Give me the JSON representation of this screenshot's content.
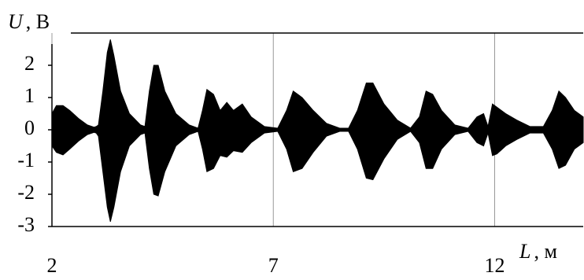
{
  "chart_data": {
    "type": "envelope",
    "ylabel_symbol": "U",
    "ylabel_unit": ", В",
    "xlabel_symbol": "L",
    "xlabel_unit": ", м",
    "x": [
      2.0,
      2.1,
      2.25,
      2.4,
      2.6,
      2.8,
      2.95,
      3.0,
      3.05,
      3.15,
      3.25,
      3.32,
      3.4,
      3.55,
      3.75,
      4.0,
      4.1,
      4.2,
      4.3,
      4.4,
      4.55,
      4.8,
      5.1,
      5.3,
      5.4,
      5.5,
      5.65,
      5.8,
      5.95,
      6.1,
      6.3,
      6.5,
      6.8,
      7.1,
      7.3,
      7.45,
      7.65,
      7.9,
      8.2,
      8.5,
      8.7,
      8.9,
      9.1,
      9.25,
      9.5,
      9.8,
      10.1,
      10.3,
      10.45,
      10.6,
      10.8,
      11.1,
      11.4,
      11.6,
      11.75,
      11.85,
      11.95,
      12.05,
      12.25,
      12.5,
      12.8,
      13.1,
      13.3,
      13.45,
      13.6,
      13.8,
      14.0
    ],
    "series": [
      {
        "color": "#000000",
        "values": [
          0.5,
          0.75,
          0.75,
          0.6,
          0.35,
          0.15,
          0.08,
          0.1,
          0.15,
          1.2,
          2.4,
          2.8,
          2.3,
          1.2,
          0.5,
          0.15,
          0.1,
          1.2,
          2.0,
          2.0,
          1.2,
          0.5,
          0.15,
          0.05,
          0.6,
          1.25,
          1.1,
          0.6,
          0.85,
          0.6,
          0.8,
          0.4,
          0.1,
          0.05,
          0.6,
          1.2,
          1.0,
          0.6,
          0.2,
          0.05,
          0.05,
          0.6,
          1.45,
          1.45,
          0.8,
          0.3,
          0.05,
          0.4,
          1.2,
          1.1,
          0.6,
          0.15,
          0.05,
          0.4,
          0.5,
          0.1,
          0.8,
          0.7,
          0.5,
          0.3,
          0.1,
          0.1,
          0.6,
          1.2,
          1.0,
          0.6,
          0.4
        ]
      },
      {
        "color": "#000000",
        "values": [
          -0.5,
          -0.7,
          -0.78,
          -0.6,
          -0.35,
          -0.15,
          -0.08,
          -0.1,
          -0.2,
          -1.3,
          -2.4,
          -2.85,
          -2.4,
          -1.3,
          -0.5,
          -0.15,
          -0.1,
          -1.2,
          -2.0,
          -2.05,
          -1.3,
          -0.5,
          -0.15,
          -0.05,
          -0.6,
          -1.3,
          -1.2,
          -0.8,
          -0.85,
          -0.65,
          -0.7,
          -0.4,
          -0.1,
          -0.05,
          -0.6,
          -1.3,
          -1.2,
          -0.7,
          -0.2,
          -0.05,
          -0.05,
          -0.6,
          -1.5,
          -1.55,
          -0.9,
          -0.3,
          -0.05,
          -0.4,
          -1.2,
          -1.2,
          -0.6,
          -0.15,
          -0.05,
          -0.4,
          -0.5,
          -0.1,
          -0.8,
          -0.75,
          -0.5,
          -0.3,
          -0.1,
          -0.1,
          -0.6,
          -1.2,
          -1.1,
          -0.6,
          -0.4
        ]
      }
    ],
    "xlim": [
      2,
      14
    ],
    "xticks": [
      2,
      7,
      12
    ],
    "ylim": [
      -3,
      3
    ],
    "yticks": [
      -3,
      -2,
      -1,
      0,
      1,
      2
    ],
    "grid": true
  }
}
